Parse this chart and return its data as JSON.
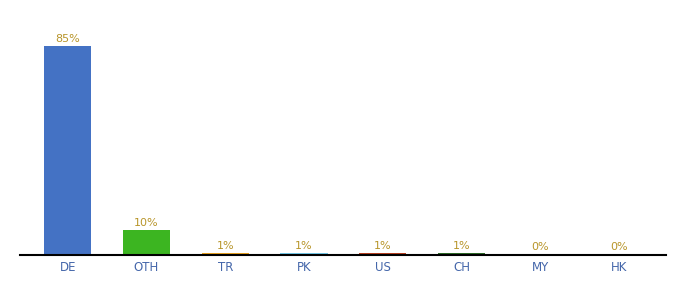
{
  "categories": [
    "DE",
    "OTH",
    "TR",
    "PK",
    "US",
    "CH",
    "MY",
    "HK"
  ],
  "values": [
    85,
    10,
    1,
    1,
    1,
    1,
    0.3,
    0.3
  ],
  "labels": [
    "85%",
    "10%",
    "1%",
    "1%",
    "1%",
    "1%",
    "0%",
    "0%"
  ],
  "bar_colors": [
    "#4472c4",
    "#3cb521",
    "#e8a020",
    "#72c7e7",
    "#b84020",
    "#2d6a27",
    "#4472c4",
    "#4472c4"
  ],
  "label_color": "#b8952a",
  "background_color": "#ffffff",
  "ylim": [
    0,
    95
  ],
  "bar_width": 0.6,
  "figsize": [
    6.8,
    3.0
  ],
  "dpi": 100
}
